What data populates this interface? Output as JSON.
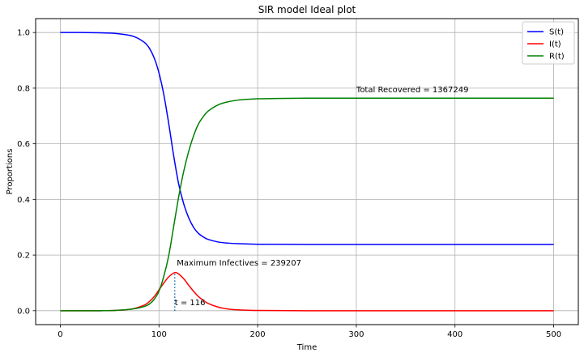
{
  "chart_data": {
    "type": "line",
    "title": "SIR model Ideal plot",
    "xlabel": "Time",
    "ylabel": "Proportions",
    "xlim": [
      -25,
      525
    ],
    "ylim": [
      -0.05,
      1.05
    ],
    "xticks": [
      0,
      100,
      200,
      300,
      400,
      500
    ],
    "yticks": [
      0.0,
      0.2,
      0.4,
      0.6,
      0.8,
      1.0
    ],
    "grid": true,
    "legend_position": "top-right",
    "series": [
      {
        "name": "S(t)",
        "color": "#0000ff",
        "x": [
          0,
          20,
          40,
          55,
          65,
          75,
          85,
          90,
          95,
          100,
          105,
          110,
          115,
          120,
          125,
          130,
          135,
          140,
          145,
          150,
          160,
          170,
          180,
          190,
          200,
          220,
          250,
          300,
          400,
          500
        ],
        "y": [
          1.0,
          1.0,
          0.999,
          0.997,
          0.993,
          0.985,
          0.965,
          0.945,
          0.91,
          0.855,
          0.775,
          0.67,
          0.555,
          0.455,
          0.385,
          0.335,
          0.3,
          0.278,
          0.265,
          0.256,
          0.247,
          0.243,
          0.241,
          0.24,
          0.239,
          0.239,
          0.238,
          0.238,
          0.238,
          0.238
        ]
      },
      {
        "name": "I(t)",
        "color": "#ff0000",
        "x": [
          0,
          20,
          40,
          55,
          65,
          75,
          85,
          90,
          95,
          100,
          105,
          110,
          116,
          120,
          125,
          130,
          135,
          140,
          145,
          150,
          160,
          170,
          180,
          190,
          200,
          220,
          250,
          300,
          400,
          500
        ],
        "y": [
          0.0,
          0.0,
          0.0,
          0.001,
          0.003,
          0.008,
          0.02,
          0.032,
          0.05,
          0.075,
          0.1,
          0.122,
          0.1372,
          0.132,
          0.115,
          0.092,
          0.07,
          0.051,
          0.037,
          0.026,
          0.013,
          0.006,
          0.003,
          0.0015,
          0.001,
          0.0005,
          0.0,
          0.0,
          0.0,
          0.0
        ]
      },
      {
        "name": "R(t)",
        "color": "#008000",
        "x": [
          0,
          20,
          40,
          55,
          65,
          75,
          85,
          90,
          95,
          100,
          105,
          110,
          115,
          120,
          125,
          130,
          135,
          140,
          145,
          150,
          160,
          170,
          180,
          190,
          200,
          220,
          250,
          300,
          400,
          500
        ],
        "y": [
          0.0,
          0.0,
          0.0,
          0.001,
          0.003,
          0.007,
          0.015,
          0.023,
          0.04,
          0.07,
          0.125,
          0.2,
          0.305,
          0.41,
          0.5,
          0.571,
          0.628,
          0.671,
          0.698,
          0.718,
          0.74,
          0.751,
          0.757,
          0.76,
          0.762,
          0.763,
          0.764,
          0.764,
          0.764,
          0.764
        ]
      }
    ],
    "peak_marker": {
      "x": 116,
      "y_top": 0.1372,
      "color": "#1f77b4"
    },
    "annotations": [
      {
        "text": "Maximum Infectives = 239207",
        "x": 118,
        "y": 0.163
      },
      {
        "text": "t = 116",
        "x": 116,
        "y": 0.02
      },
      {
        "text": "Total Recovered = 1367249",
        "x": 300,
        "y": 0.785
      }
    ]
  }
}
